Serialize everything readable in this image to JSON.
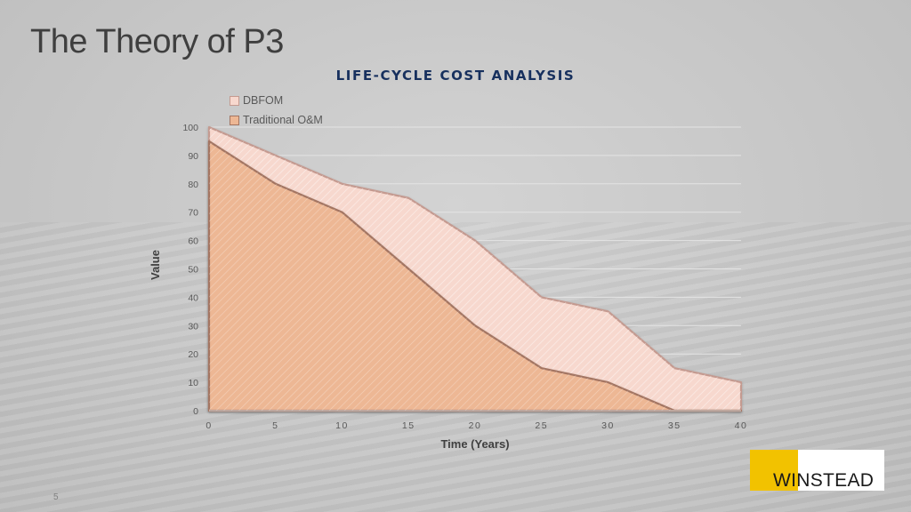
{
  "slide": {
    "title": "The Theory of P3",
    "page_number": "5",
    "logo_text": "WINSTEAD"
  },
  "colors": {
    "dbfom_fill": "#f7d8ce",
    "dbfom_stroke": "#c49a90",
    "traditional_fill": "#edb794",
    "traditional_stroke": "#a37562",
    "logo_yellow": "#f2c200",
    "title_navy": "#17305e"
  },
  "chart_data": {
    "type": "area",
    "title": "LIFE-CYCLE COST ANALYSIS",
    "xlabel": "Time (Years)",
    "ylabel": "Value",
    "x": [
      0,
      5,
      10,
      15,
      20,
      25,
      30,
      35,
      40
    ],
    "xlim": [
      0,
      40
    ],
    "ylim": [
      0,
      100
    ],
    "x_ticks": [
      "0",
      "5",
      "10",
      "15",
      "20",
      "25",
      "30",
      "35",
      "40"
    ],
    "y_ticks": [
      "0",
      "10",
      "20",
      "30",
      "40",
      "50",
      "60",
      "70",
      "80",
      "90",
      "100"
    ],
    "grid": true,
    "legend_position": "top-left",
    "series": [
      {
        "name": "DBFOM",
        "values": [
          100,
          90,
          80,
          75,
          60,
          40,
          35,
          15,
          10
        ]
      },
      {
        "name": "Traditional O&M",
        "values": [
          95,
          80,
          70,
          50,
          30,
          15,
          10,
          0,
          0
        ]
      }
    ]
  }
}
